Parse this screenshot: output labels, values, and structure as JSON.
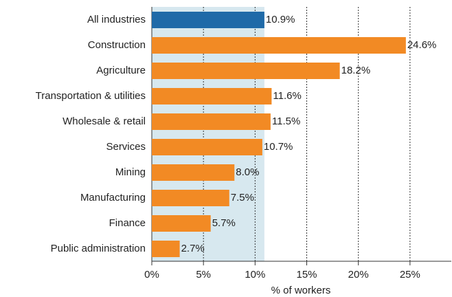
{
  "chart_data": {
    "type": "bar",
    "orientation": "horizontal",
    "x_label": "% of workers",
    "categories": [
      "All industries",
      "Construction",
      "Agriculture",
      "Transportation & utilities",
      "Wholesale & retail",
      "Services",
      "Mining",
      "Manufacturing",
      "Finance",
      "Public administration"
    ],
    "values": [
      10.9,
      24.6,
      18.2,
      11.6,
      11.5,
      10.7,
      8.0,
      7.5,
      5.7,
      2.7
    ],
    "value_labels": [
      "10.9%",
      "24.6%",
      "18.2%",
      "11.6%",
      "11.5%",
      "10.7%",
      "8.0%",
      "7.5%",
      "5.7%",
      "2.7%"
    ],
    "colors": [
      "#1f6aa8",
      "#f28a24",
      "#f28a24",
      "#f28a24",
      "#f28a24",
      "#f28a24",
      "#f28a24",
      "#f28a24",
      "#f28a24",
      "#f28a24"
    ],
    "highlight_color": "#d7e8ef",
    "xlim": [
      0,
      29
    ],
    "xticks": [
      {
        "value": 0,
        "label": "0%"
      },
      {
        "value": 5,
        "label": "5%"
      },
      {
        "value": 10,
        "label": "10%"
      },
      {
        "value": 15,
        "label": "15%"
      },
      {
        "value": 20,
        "label": "20%"
      },
      {
        "value": 25,
        "label": "25%"
      }
    ],
    "grid": true
  }
}
